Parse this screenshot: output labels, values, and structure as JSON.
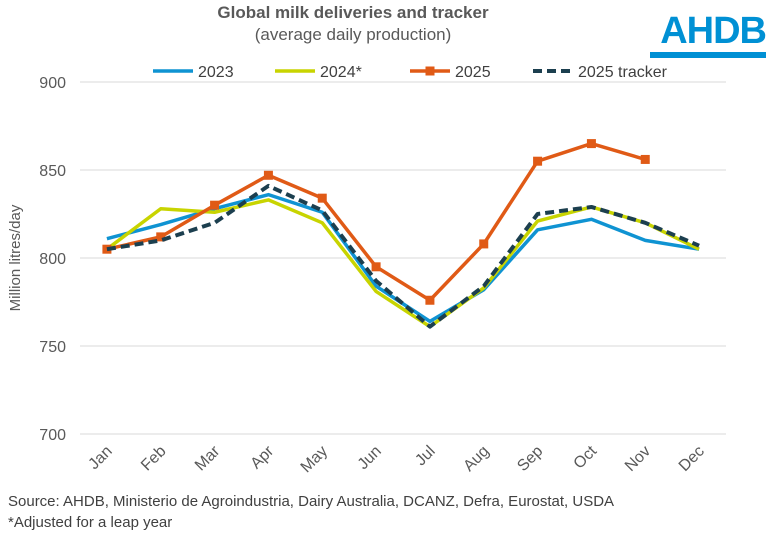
{
  "logo": "AHDB",
  "source_note": "Source: AHDB, Ministerio de Agroindustria, Dairy Australia, DCANZ, Defra, Eurostat, USDA",
  "footnote": "*Adjusted for a leap year",
  "chart_data": {
    "type": "line",
    "title": "Global milk deliveries and tracker",
    "subtitle": "(average daily production)",
    "xlabel": "",
    "ylabel": "Million litres/day",
    "ylim": [
      700,
      900
    ],
    "yticks": [
      700,
      750,
      800,
      850,
      900
    ],
    "grid": true,
    "legend": "top",
    "categories": [
      "Jan",
      "Feb",
      "Mar",
      "Apr",
      "May",
      "Jun",
      "Jul",
      "Aug",
      "Sep",
      "Oct",
      "Nov",
      "Dec"
    ],
    "series": [
      {
        "name": "2023",
        "color": "#0f93d2",
        "style": "solid",
        "marker": "none",
        "values": [
          811,
          819,
          828,
          836,
          826,
          784,
          764,
          782,
          816,
          822,
          810,
          805
        ]
      },
      {
        "name": "2024*",
        "color": "#c8d400",
        "style": "solid",
        "marker": "none",
        "values": [
          805,
          828,
          826,
          833,
          820,
          781,
          761,
          783,
          821,
          829,
          820,
          805
        ]
      },
      {
        "name": "2025",
        "color": "#e05a16",
        "style": "solid",
        "marker": "square",
        "values": [
          805,
          812,
          830,
          847,
          834,
          795,
          776,
          808,
          855,
          865,
          856,
          null
        ]
      },
      {
        "name": "2025 tracker",
        "color": "#1c3f4f",
        "style": "dashed",
        "marker": "none",
        "values": [
          805,
          810,
          820,
          841,
          827,
          787,
          761,
          784,
          825,
          829,
          820,
          807
        ]
      }
    ]
  }
}
